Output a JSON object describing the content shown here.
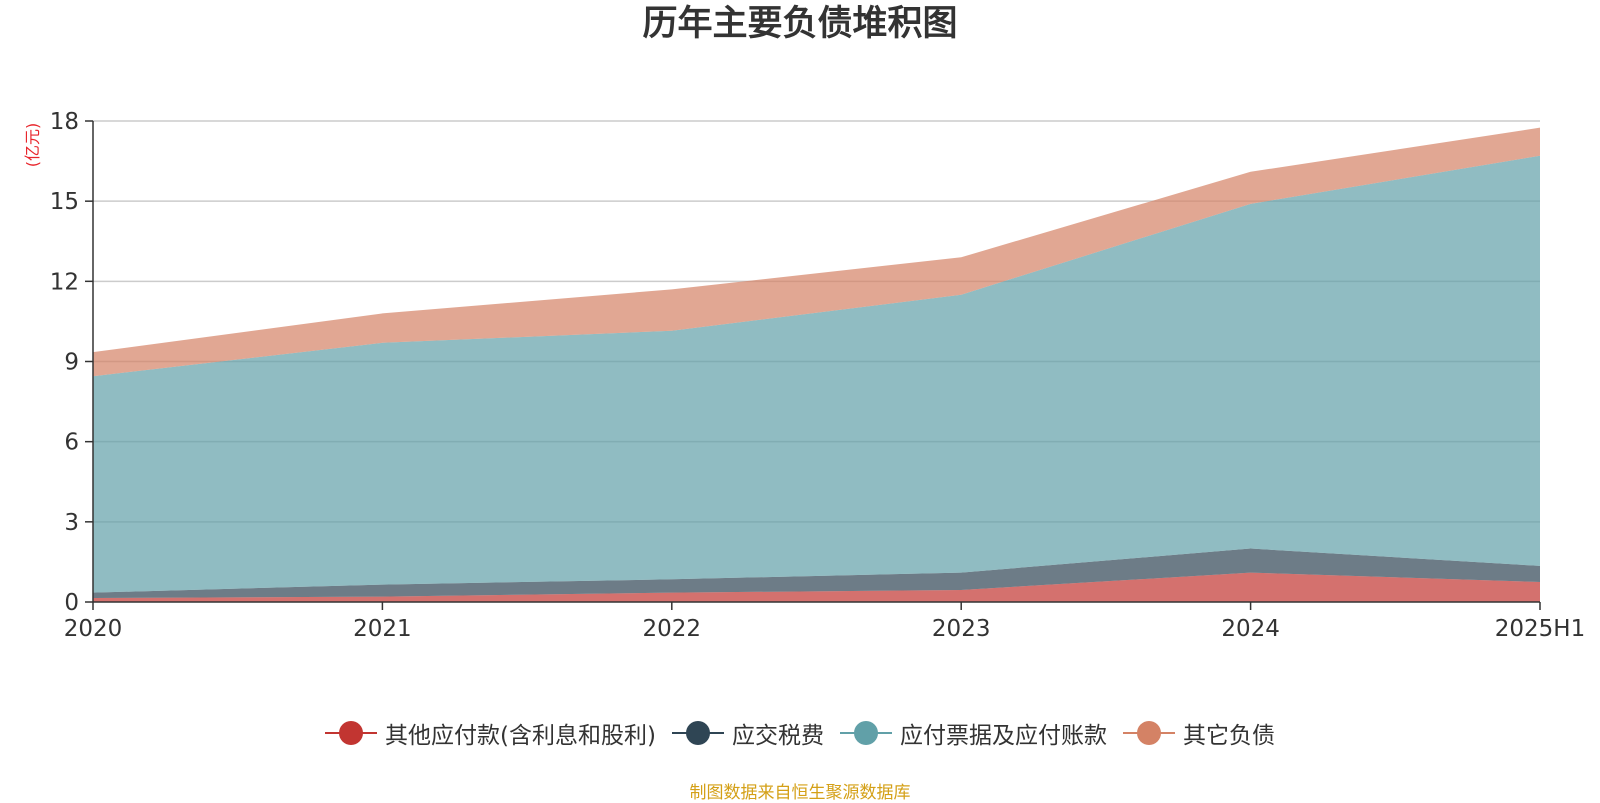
{
  "chart_data": {
    "type": "area",
    "stacked": true,
    "title": "历年主要负债堆积图",
    "ylabel": "(亿元)",
    "xlabel": "",
    "categories": [
      "2020",
      "2021",
      "2022",
      "2023",
      "2024",
      "2025H1"
    ],
    "ylim": [
      0,
      18
    ],
    "yticks": [
      "0",
      "3",
      "6",
      "9",
      "12",
      "15",
      "18"
    ],
    "grid": true,
    "legend_position": "bottom",
    "series": [
      {
        "name": "其他应付款(含利息和股利)",
        "color": "#c23531",
        "values": [
          0.15,
          0.2,
          0.35,
          0.45,
          1.1,
          0.75
        ]
      },
      {
        "name": "应交税费",
        "color": "#2f4554",
        "values": [
          0.2,
          0.45,
          0.5,
          0.65,
          0.9,
          0.6
        ]
      },
      {
        "name": "应付票据及应付账款",
        "color": "#61a0a8",
        "values": [
          8.1,
          9.05,
          9.3,
          10.4,
          12.9,
          15.35
        ]
      },
      {
        "name": "其它负债",
        "color": "#d48265",
        "values": [
          0.9,
          1.1,
          1.55,
          1.4,
          1.2,
          1.05
        ]
      }
    ]
  },
  "footer": {
    "source": "制图数据来自恒生聚源数据库"
  }
}
